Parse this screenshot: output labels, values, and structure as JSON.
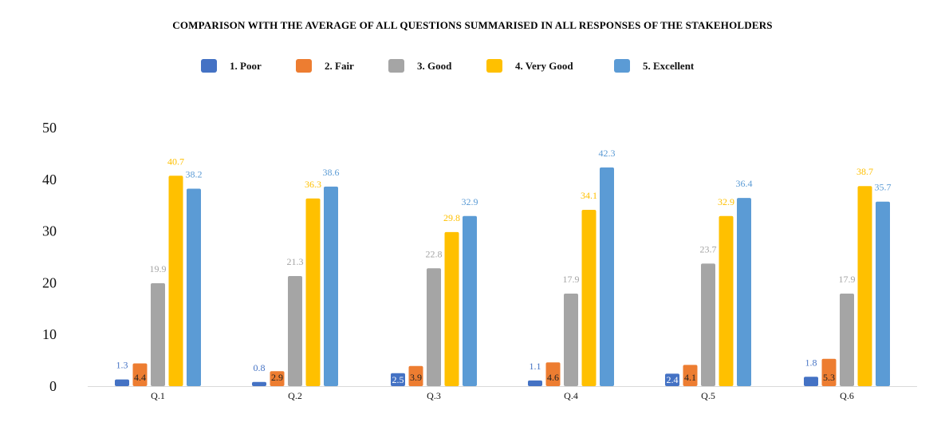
{
  "chart_data": {
    "type": "bar",
    "title": "COMPARISON WITH THE AVERAGE OF ALL QUESTIONS  SUMMARISED IN  ALL RESPONSES OF THE STAKEHOLDERS",
    "categories": [
      "Q.1",
      "Q.2",
      "Q.3",
      "Q.4",
      "Q.5",
      "Q.6"
    ],
    "series": [
      {
        "name": "1.  Poor",
        "color": "#4472C4",
        "values": [
          1.3,
          0.8,
          2.5,
          1.1,
          2.4,
          1.8
        ]
      },
      {
        "name": "2.  Fair",
        "color": "#ED7D31",
        "values": [
          4.4,
          2.9,
          3.9,
          4.6,
          4.1,
          5.3
        ]
      },
      {
        "name": "3.  Good",
        "color": "#A5A5A5",
        "values": [
          19.9,
          21.3,
          22.8,
          17.9,
          23.7,
          17.9
        ]
      },
      {
        "name": "4.  Very Good",
        "color": "#FFC000",
        "values": [
          40.7,
          36.3,
          29.8,
          34.1,
          32.9,
          38.7
        ]
      },
      {
        "name": "5.  Excellent",
        "color": "#5B9BD5",
        "values": [
          38.2,
          38.6,
          32.9,
          42.3,
          36.4,
          35.7
        ]
      }
    ],
    "y_ticks": [
      "0",
      "10",
      "20",
      "30",
      "40",
      "50"
    ],
    "ylim": [
      0,
      50
    ],
    "grid": false,
    "legend_position": "top-center"
  }
}
